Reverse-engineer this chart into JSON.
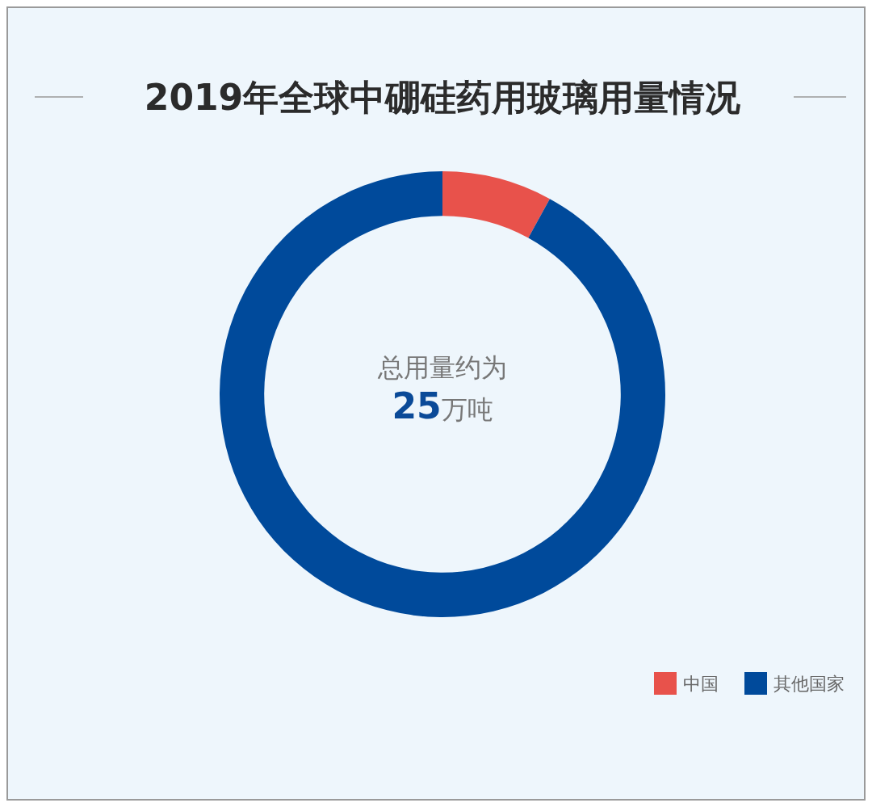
{
  "chart_data": {
    "type": "donut",
    "title": "2019年全球中硼硅药用玻璃用量情况",
    "categories": [
      "中国",
      "其他国家"
    ],
    "values": [
      8,
      92
    ],
    "colors": [
      "#e8524b",
      "#004a9b"
    ],
    "annotations": [
      "总用量约为",
      "25万吨"
    ],
    "legend": "bottom right"
  }
}
